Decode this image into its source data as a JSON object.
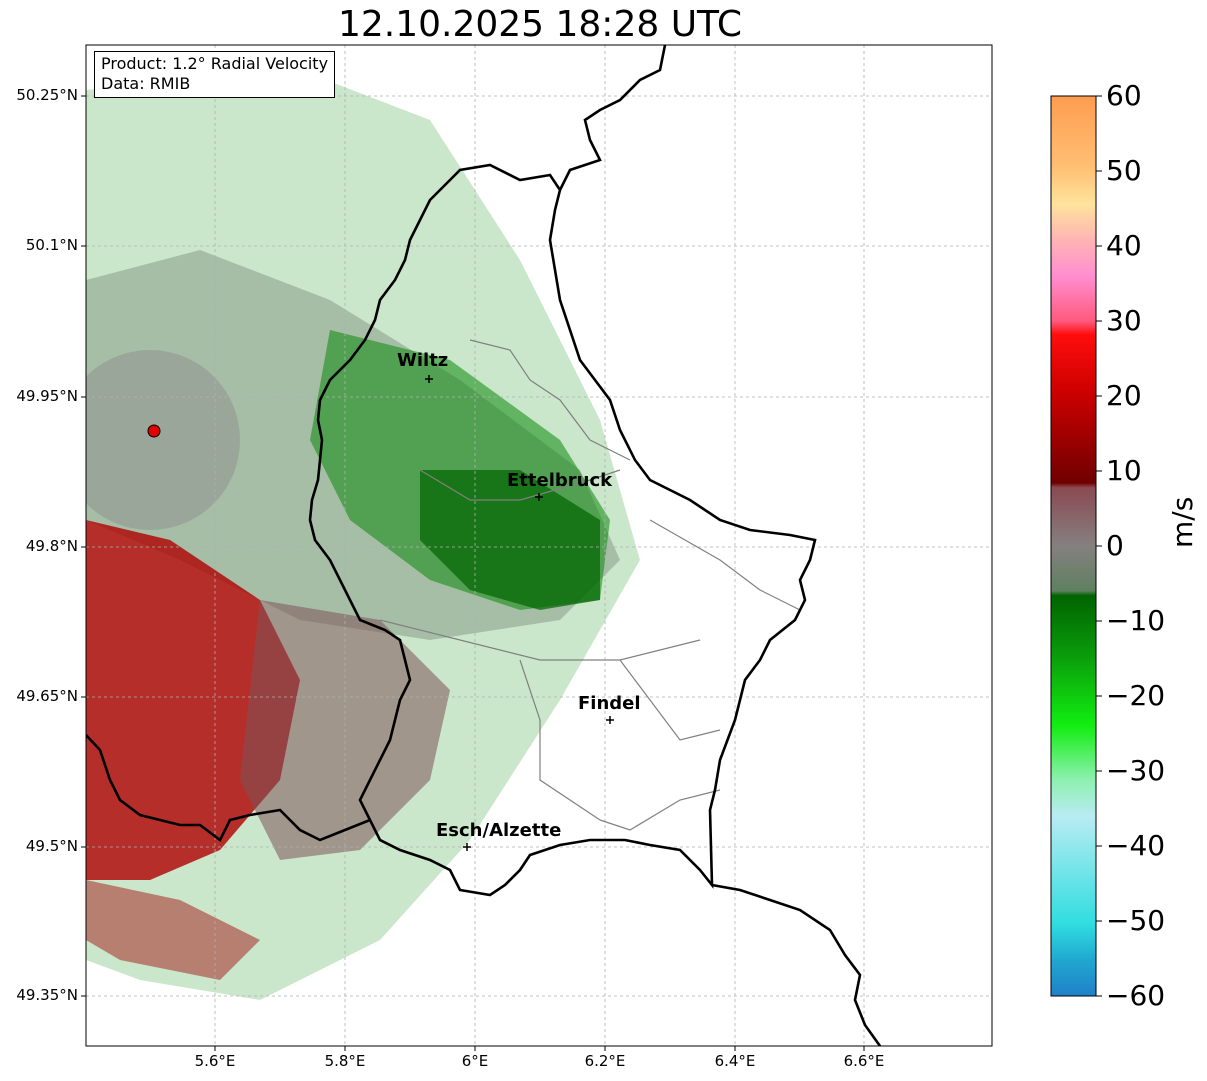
{
  "title": "12.10.2025 18:28 UTC",
  "info": {
    "product": "Product: 1.2° Radial Velocity",
    "source": "Data: RMIB"
  },
  "axes": {
    "lat_ticks": [
      "50.25°N",
      "50.1°N",
      "49.95°N",
      "49.8°N",
      "49.65°N",
      "49.5°N",
      "49.35°N"
    ],
    "lon_ticks": [
      "5.6°E",
      "5.8°E",
      "6°E",
      "6.2°E",
      "6.4°E",
      "6.6°E"
    ],
    "grid": true
  },
  "cities": [
    {
      "name": "Wiltz",
      "lat": 49.967,
      "lon": 5.932
    },
    {
      "name": "Ettelbruck",
      "lat": 49.848,
      "lon": 6.104
    },
    {
      "name": "Findel",
      "lat": 49.626,
      "lon": 6.211
    },
    {
      "name": "Esch/Alzette",
      "lat": 49.496,
      "lon": 5.986
    }
  ],
  "radar_site": {
    "lat": 49.914,
    "lon": 5.505,
    "color": "#e00000"
  },
  "colorbar": {
    "label": "m/s",
    "ticks": [
      "60",
      "50",
      "40",
      "30",
      "20",
      "10",
      "0",
      "−10",
      "−20",
      "−30",
      "−40",
      "−50",
      "−60"
    ],
    "min": -60,
    "max": 60
  }
}
